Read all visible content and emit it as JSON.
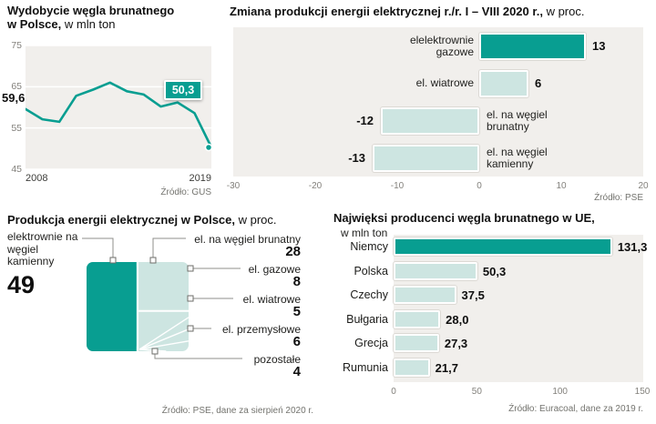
{
  "colors": {
    "accent": "#089e91",
    "light_fill": "#cde5e1",
    "plot_bg": "#f1efec"
  },
  "chart_data": [
    {
      "id": "lignite-mining-poland",
      "type": "line",
      "title_line1": "Wydobycie węgla brunatnego",
      "title_line2_bold": "w Polsce,",
      "title_line2_rest": "w mln ton",
      "x": [
        2008,
        2009,
        2010,
        2011,
        2012,
        2013,
        2014,
        2015,
        2016,
        2017,
        2018,
        2019
      ],
      "values": [
        59.6,
        57.1,
        56.5,
        62.8,
        64.3,
        66.0,
        63.9,
        63.1,
        60.2,
        61.2,
        58.6,
        50.3
      ],
      "ylim": [
        45,
        75
      ],
      "y_ticks": [
        75,
        65,
        55,
        45
      ],
      "x_tick_labels": [
        "2008",
        "2019"
      ],
      "first_value_label": "59,6",
      "last_value_label": "50,3",
      "grid": true,
      "source": "Źródło: GUS"
    },
    {
      "id": "electricity-production-change",
      "type": "bar",
      "orientation": "horizontal",
      "title_bold": "Zmiana produkcji energii elektrycznej r./r. I – VIII 2020 r.,",
      "title_rest": "w proc.",
      "rows": [
        {
          "label": "elelektrownie gazowe",
          "value": 13,
          "display": "13",
          "emphasis": true
        },
        {
          "label": "el. wiatrowe",
          "value": 6,
          "display": "6",
          "emphasis": false
        },
        {
          "label": "el. na węgiel brunatny",
          "value": -12,
          "display": "-12",
          "emphasis": false
        },
        {
          "label": "el. na węgiel kamienny",
          "value": -13,
          "display": "-13",
          "emphasis": false
        }
      ],
      "xlim": [
        -30,
        20
      ],
      "x_ticks": [
        -30,
        -20,
        -10,
        0,
        10,
        20
      ],
      "source": "Źródło: PSE"
    },
    {
      "id": "electricity-mix-poland",
      "type": "treemap",
      "title_bold": "Produkcja energii elektrycznej w Polsce,",
      "title_rest": "w proc.",
      "segments": [
        {
          "label": "elektrownie na węgiel kamienny",
          "value": 49,
          "display": "49"
        },
        {
          "label": "el. na węgiel brunatny",
          "value": 28,
          "display": "28"
        },
        {
          "label": "el. gazowe",
          "value": 8,
          "display": "8"
        },
        {
          "label": "el. wiatrowe",
          "value": 5,
          "display": "5"
        },
        {
          "label": "el. przemysłowe",
          "value": 6,
          "display": "6"
        },
        {
          "label": "pozostałe",
          "value": 4,
          "display": "4"
        }
      ],
      "source": "Źródło:  PSE, dane za sierpień 2020 r."
    },
    {
      "id": "biggest-lignite-producers-eu",
      "type": "bar",
      "orientation": "horizontal",
      "title_bold": "Najwięksi producenci węgla brunatnego w UE,",
      "subtitle": "w mln ton",
      "rows": [
        {
          "label": "Niemcy",
          "value": 131.3,
          "display": "131,3",
          "emphasis": true
        },
        {
          "label": "Polska",
          "value": 50.3,
          "display": "50,3",
          "emphasis": false
        },
        {
          "label": "Czechy",
          "value": 37.5,
          "display": "37,5",
          "emphasis": false
        },
        {
          "label": "Bułgaria",
          "value": 28.0,
          "display": "28,0",
          "emphasis": false
        },
        {
          "label": "Grecja",
          "value": 27.3,
          "display": "27,3",
          "emphasis": false
        },
        {
          "label": "Rumunia",
          "value": 21.7,
          "display": "21,7",
          "emphasis": false
        }
      ],
      "xlim": [
        0,
        150
      ],
      "x_ticks": [
        0,
        50,
        100,
        150
      ],
      "source": "Źródło: Euracoal, dane za 2019 r."
    }
  ]
}
